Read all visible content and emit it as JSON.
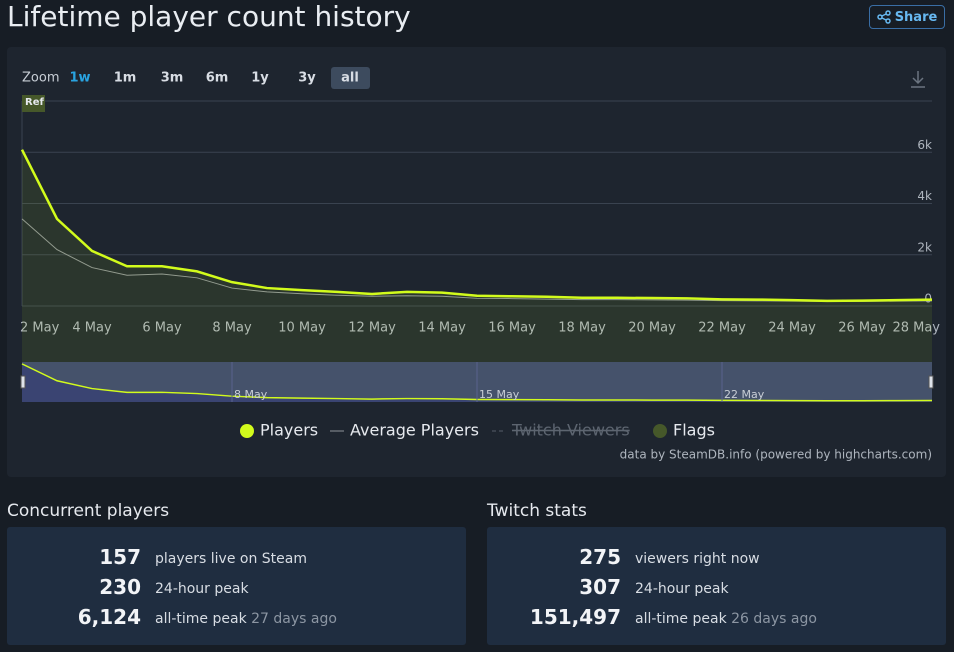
{
  "header": {
    "title": "Lifetime player count history",
    "share": "Share"
  },
  "zoom": {
    "label": "Zoom",
    "options": [
      "1w",
      "1m",
      "3m",
      "6m",
      "1y",
      "3y",
      "all"
    ],
    "active": "all",
    "active_color": "#29a3e0"
  },
  "chart_data": {
    "type": "line",
    "categories": [
      "2 May",
      null,
      "4 May",
      null,
      "6 May",
      null,
      "8 May",
      null,
      "10 May",
      null,
      "12 May",
      null,
      "14 May",
      null,
      "16 May",
      null,
      "18 May",
      null,
      "20 May",
      null,
      "22 May",
      null,
      "24 May",
      null,
      "26 May",
      null,
      "28 May"
    ],
    "series": [
      {
        "name": "Players",
        "color": "#d2fb1c",
        "values": [
          6100,
          3400,
          2150,
          1550,
          1550,
          1350,
          930,
          700,
          620,
          550,
          470,
          550,
          520,
          400,
          380,
          360,
          320,
          320,
          310,
          300,
          260,
          250,
          230,
          200,
          210,
          230,
          250
        ]
      },
      {
        "name": "Average Players",
        "color": "#8f949a",
        "values": [
          3400,
          2200,
          1500,
          1200,
          1250,
          1100,
          700,
          550,
          480,
          420,
          380,
          400,
          380,
          300,
          290,
          270,
          250,
          250,
          240,
          230,
          210,
          200,
          190,
          180,
          180,
          190,
          200
        ]
      }
    ],
    "legend_extra": [
      {
        "name": "Twitch Viewers",
        "hidden": true,
        "color": "#8f949a"
      },
      {
        "name": "Flags",
        "color": "#46582a"
      }
    ],
    "flag": "Ref",
    "ylim": [
      0,
      8000
    ],
    "yticks": [
      0,
      {
        "value": 2000,
        "label": "2k"
      },
      {
        "value": 4000,
        "label": "4k"
      },
      {
        "value": 6000,
        "label": "6k"
      }
    ],
    "grid": true,
    "navigator_labels": [
      "8 May",
      "15 May",
      "22 May"
    ],
    "credit": "data by SteamDB.info (powered by highcharts.com)"
  },
  "concurrent": {
    "title": "Concurrent players",
    "rows": [
      {
        "value": "157",
        "label": "players live on Steam"
      },
      {
        "value": "230",
        "label": "24-hour peak"
      },
      {
        "value": "6,124",
        "label": "all-time peak",
        "ago": "27 days ago"
      }
    ]
  },
  "twitch": {
    "title": "Twitch stats",
    "rows": [
      {
        "value": "275",
        "label": "viewers right now"
      },
      {
        "value": "307",
        "label": "24-hour peak"
      },
      {
        "value": "151,497",
        "label": "all-time peak",
        "ago": "26 days ago"
      }
    ]
  }
}
